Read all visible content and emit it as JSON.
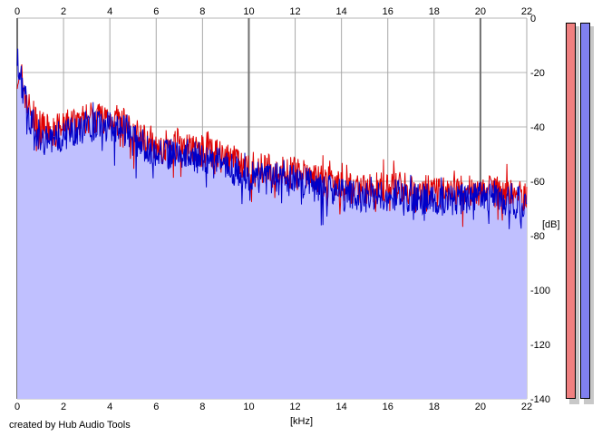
{
  "chart_data": {
    "type": "area",
    "title": "",
    "xlabel": "[kHz]",
    "ylabel": "[dB]",
    "xlim": [
      0,
      22
    ],
    "ylim": [
      -140,
      0
    ],
    "x_ticks": [
      "0",
      "2",
      "4",
      "6",
      "8",
      "10",
      "12",
      "14",
      "16",
      "18",
      "20",
      "22"
    ],
    "y_ticks": [
      "0",
      "-20",
      "-40",
      "-60",
      "-80",
      "-100",
      "-120",
      "-140"
    ],
    "grid": true,
    "legend": "none",
    "series": [
      {
        "color": "#e00000",
        "x": [
          0,
          0.1,
          0.2,
          0.4,
          0.6,
          1,
          1.5,
          2,
          2.5,
          3,
          3.5,
          4,
          4.5,
          5,
          5.5,
          6,
          6.5,
          7,
          7.5,
          8,
          8.5,
          9,
          9.5,
          10,
          11,
          12,
          13,
          14,
          15,
          16,
          17,
          18,
          19,
          20,
          21,
          22
        ],
        "values": [
          -20,
          -24,
          -22,
          -30,
          -35,
          -40,
          -42,
          -40,
          -38,
          -37,
          -36,
          -37,
          -38,
          -42,
          -44,
          -46,
          -47,
          -46,
          -47,
          -49,
          -50,
          -52,
          -53,
          -55,
          -56,
          -57,
          -59,
          -62,
          -63,
          -62,
          -63,
          -64,
          -64,
          -63,
          -64,
          -65
        ]
      },
      {
        "color": "#0000c8",
        "x": [
          0,
          0.1,
          0.2,
          0.4,
          0.6,
          1,
          1.5,
          2,
          2.5,
          3,
          3.5,
          4,
          4.5,
          5,
          5.5,
          6,
          6.5,
          7,
          7.5,
          8,
          8.5,
          9,
          9.5,
          10,
          11,
          12,
          13,
          14,
          15,
          16,
          17,
          18,
          19,
          20,
          21,
          22
        ],
        "values": [
          -14,
          -22,
          -24,
          -32,
          -38,
          -44,
          -45,
          -43,
          -41,
          -40,
          -39,
          -40,
          -41,
          -45,
          -47,
          -49,
          -50,
          -49,
          -50,
          -52,
          -53,
          -55,
          -56,
          -58,
          -59,
          -60,
          -62,
          -65,
          -66,
          -65,
          -66,
          -67,
          -67,
          -66,
          -67,
          -68
        ]
      }
    ],
    "fill_color": "#c0c0ff"
  },
  "level_meters": [
    {
      "color": "#f08080",
      "level": 1.0
    },
    {
      "color": "#8080f0",
      "level": 1.0
    }
  ],
  "footer": {
    "credit": "created by Hub Audio Tools"
  }
}
